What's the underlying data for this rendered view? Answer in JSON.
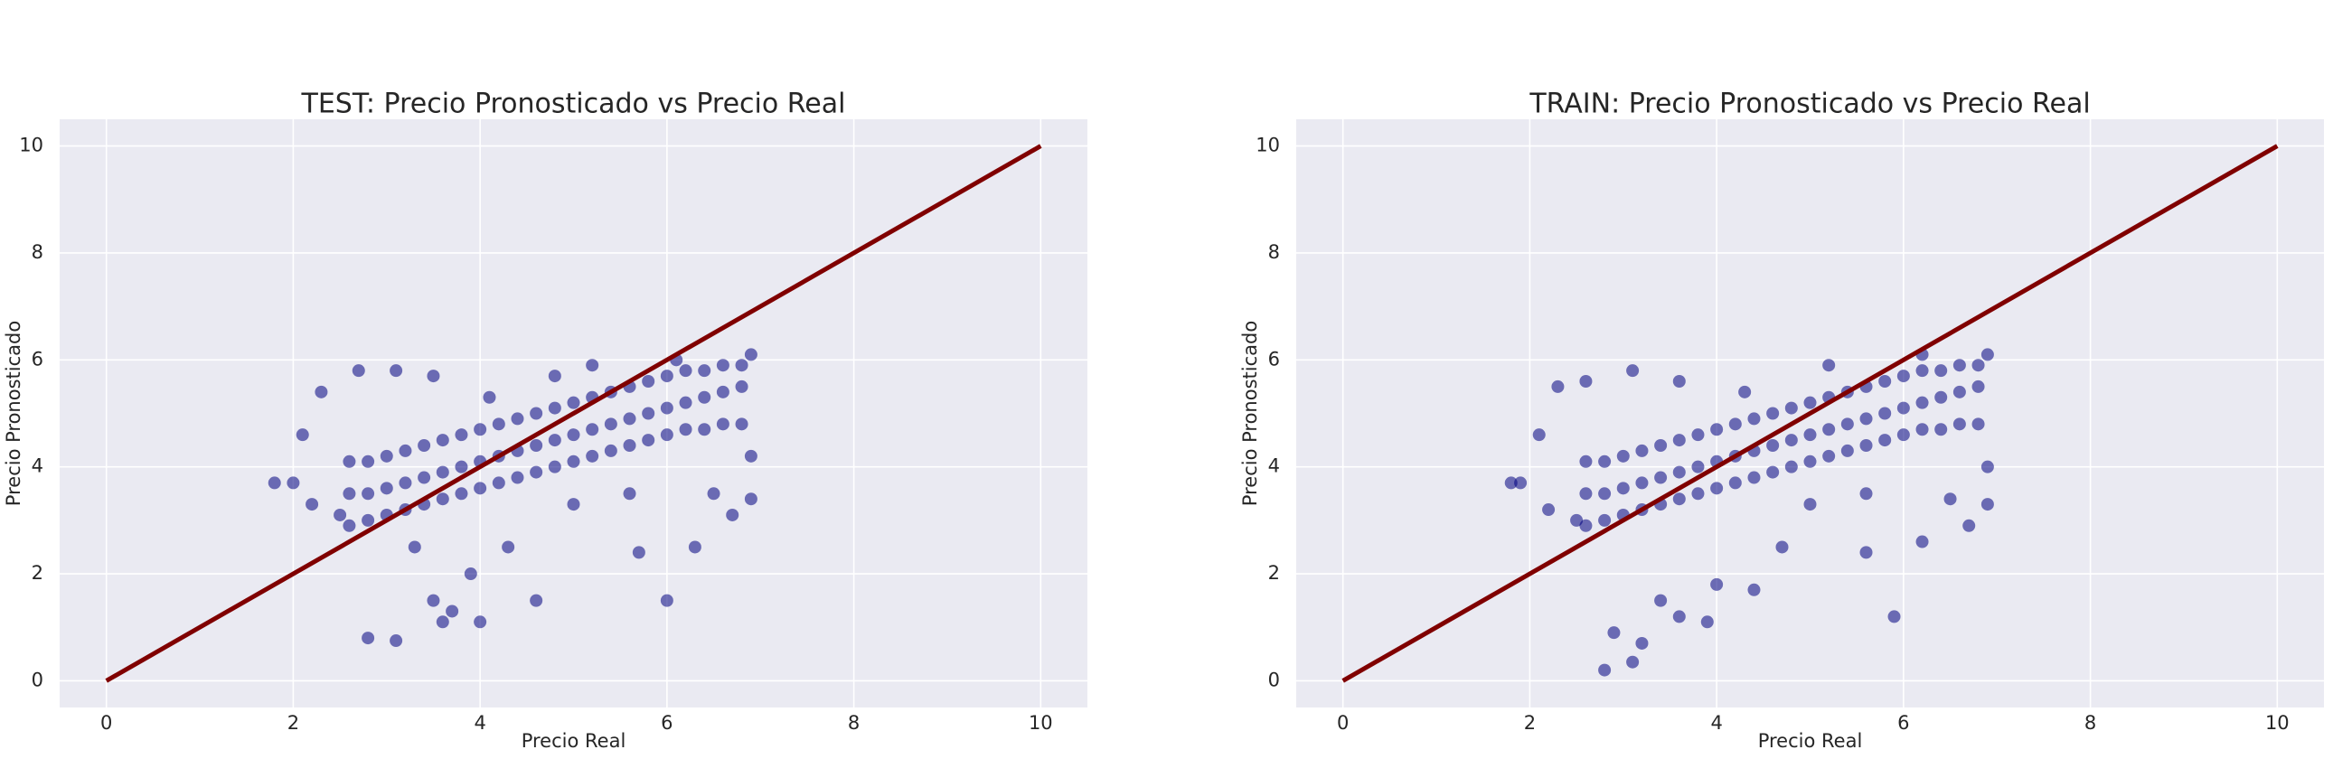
{
  "chart_data": [
    {
      "type": "scatter",
      "title": "TEST: Precio Pronosticado vs Precio Real",
      "xlabel": "Precio Real",
      "ylabel": "Precio Pronosticado",
      "xlim": [
        -0.5,
        10.5
      ],
      "ylim": [
        -0.5,
        10.5
      ],
      "xticks": [
        0,
        2,
        4,
        6,
        8,
        10
      ],
      "yticks": [
        0,
        2,
        4,
        6,
        8,
        10
      ],
      "grid": true,
      "series": [
        {
          "type": "scatter",
          "color": "#000080",
          "x": [
            2.6,
            2.6,
            2.6,
            2.8,
            2.8,
            2.8,
            3.0,
            3.0,
            3.0,
            3.2,
            3.2,
            3.2,
            3.4,
            3.4,
            3.4,
            3.6,
            3.6,
            3.6,
            3.8,
            3.8,
            3.8,
            4.0,
            4.0,
            4.0,
            4.2,
            4.2,
            4.2,
            4.4,
            4.4,
            4.4,
            4.6,
            4.6,
            4.6,
            4.8,
            4.8,
            4.8,
            5.0,
            5.0,
            5.0,
            5.2,
            5.2,
            5.2,
            5.4,
            5.4,
            5.4,
            5.6,
            5.6,
            5.6,
            5.8,
            5.8,
            5.8,
            6.0,
            6.0,
            6.0,
            6.2,
            6.2,
            6.2,
            6.4,
            6.4,
            6.4,
            6.6,
            6.6,
            6.6,
            6.8,
            6.8,
            6.8,
            1.8,
            2.0,
            2.1,
            2.2,
            2.3,
            2.5,
            2.7,
            2.8,
            3.1,
            3.1,
            3.3,
            3.5,
            3.5,
            3.6,
            3.7,
            3.9,
            4.0,
            4.1,
            4.3,
            4.6,
            4.8,
            5.0,
            5.2,
            5.6,
            5.7,
            6.0,
            6.1,
            6.3,
            6.5,
            6.7,
            6.9,
            6.9,
            6.9
          ],
          "values": [
            2.9,
            3.5,
            4.1,
            3.0,
            3.5,
            4.1,
            3.1,
            3.6,
            4.2,
            3.2,
            3.7,
            4.3,
            3.3,
            3.8,
            4.4,
            3.4,
            3.9,
            4.5,
            3.5,
            4.0,
            4.6,
            3.6,
            4.1,
            4.7,
            3.7,
            4.2,
            4.8,
            3.8,
            4.3,
            4.9,
            3.9,
            4.4,
            5.0,
            4.0,
            4.5,
            5.1,
            4.1,
            4.6,
            5.2,
            4.2,
            4.7,
            5.3,
            4.3,
            4.8,
            5.4,
            4.4,
            4.9,
            5.5,
            4.5,
            5.0,
            5.6,
            4.6,
            5.1,
            5.7,
            4.7,
            5.2,
            5.8,
            4.7,
            5.3,
            5.8,
            4.8,
            5.4,
            5.9,
            4.8,
            5.5,
            5.9,
            3.7,
            3.7,
            4.6,
            3.3,
            5.4,
            3.1,
            5.8,
            0.8,
            5.8,
            0.75,
            2.5,
            1.5,
            5.7,
            1.1,
            1.3,
            2.0,
            1.1,
            5.3,
            2.5,
            1.5,
            5.7,
            3.3,
            5.9,
            3.5,
            2.4,
            1.5,
            6.0,
            2.5,
            3.5,
            3.1,
            3.4,
            6.1,
            4.2
          ]
        },
        {
          "type": "line",
          "color": "#800000",
          "x": [
            0,
            10
          ],
          "values": [
            0,
            10
          ]
        }
      ]
    },
    {
      "type": "scatter",
      "title": "TRAIN: Precio Pronosticado vs Precio Real",
      "xlabel": "Precio Real",
      "ylabel": "Precio Pronosticado",
      "xlim": [
        -0.5,
        10.5
      ],
      "ylim": [
        -0.5,
        10.5
      ],
      "xticks": [
        0,
        2,
        4,
        6,
        8,
        10
      ],
      "yticks": [
        0,
        2,
        4,
        6,
        8,
        10
      ],
      "grid": true,
      "series": [
        {
          "type": "scatter",
          "color": "#000080",
          "x": [
            2.6,
            2.6,
            2.6,
            2.8,
            2.8,
            2.8,
            3.0,
            3.0,
            3.0,
            3.2,
            3.2,
            3.2,
            3.4,
            3.4,
            3.4,
            3.6,
            3.6,
            3.6,
            3.8,
            3.8,
            3.8,
            4.0,
            4.0,
            4.0,
            4.2,
            4.2,
            4.2,
            4.4,
            4.4,
            4.4,
            4.6,
            4.6,
            4.6,
            4.8,
            4.8,
            4.8,
            5.0,
            5.0,
            5.0,
            5.2,
            5.2,
            5.2,
            5.4,
            5.4,
            5.4,
            5.6,
            5.6,
            5.6,
            5.8,
            5.8,
            5.8,
            6.0,
            6.0,
            6.0,
            6.2,
            6.2,
            6.2,
            6.4,
            6.4,
            6.4,
            6.6,
            6.6,
            6.6,
            6.8,
            6.8,
            6.8,
            1.8,
            1.9,
            2.1,
            2.2,
            2.3,
            2.5,
            2.6,
            2.8,
            2.9,
            3.1,
            3.1,
            3.2,
            3.4,
            3.6,
            3.6,
            3.9,
            4.0,
            4.4,
            4.3,
            4.7,
            5.0,
            5.2,
            5.6,
            5.6,
            5.9,
            6.2,
            6.2,
            6.5,
            6.7,
            6.9,
            6.9,
            6.9
          ],
          "values": [
            2.9,
            3.5,
            4.1,
            3.0,
            3.5,
            4.1,
            3.1,
            3.6,
            4.2,
            3.2,
            3.7,
            4.3,
            3.3,
            3.8,
            4.4,
            3.4,
            3.9,
            4.5,
            3.5,
            4.0,
            4.6,
            3.6,
            4.1,
            4.7,
            3.7,
            4.2,
            4.8,
            3.8,
            4.3,
            4.9,
            3.9,
            4.4,
            5.0,
            4.0,
            4.5,
            5.1,
            4.1,
            4.6,
            5.2,
            4.2,
            4.7,
            5.3,
            4.3,
            4.8,
            5.4,
            4.4,
            4.9,
            5.5,
            4.5,
            5.0,
            5.6,
            4.6,
            5.1,
            5.7,
            4.7,
            5.2,
            5.8,
            4.7,
            5.3,
            5.8,
            4.8,
            5.4,
            5.9,
            4.8,
            5.5,
            5.9,
            3.7,
            3.7,
            4.6,
            3.2,
            5.5,
            3.0,
            5.6,
            0.2,
            0.9,
            5.8,
            0.35,
            0.7,
            1.5,
            1.2,
            5.6,
            1.1,
            1.8,
            1.7,
            5.4,
            2.5,
            3.3,
            5.9,
            3.5,
            2.4,
            1.2,
            2.6,
            6.1,
            3.4,
            2.9,
            3.3,
            6.1,
            4.0
          ]
        },
        {
          "type": "line",
          "color": "#800000",
          "x": [
            0,
            10
          ],
          "values": [
            0,
            10
          ]
        }
      ]
    }
  ]
}
